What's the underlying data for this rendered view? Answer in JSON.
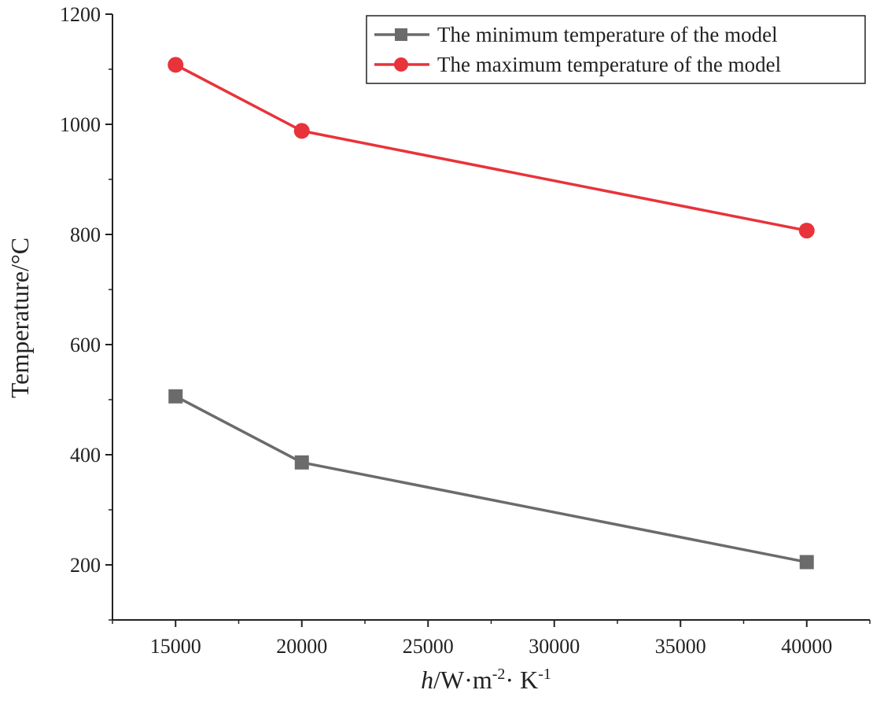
{
  "chart_data": {
    "type": "line",
    "title": "",
    "x": [
      15000,
      20000,
      40000
    ],
    "series": [
      {
        "name": "The minimum temperature of the model",
        "values": [
          506,
          386,
          205
        ],
        "color": "#6b6b6b",
        "marker": "square"
      },
      {
        "name": "The maximum temperature of the model",
        "values": [
          1108,
          988,
          807
        ],
        "color": "#e8333a",
        "marker": "circle"
      }
    ],
    "xlim": [
      12500,
      42500
    ],
    "ylim": [
      100,
      1200
    ],
    "xticks": [
      15000,
      20000,
      25000,
      30000,
      35000,
      40000
    ],
    "yticks": [
      200,
      400,
      600,
      800,
      1000,
      1200
    ],
    "xtick_labels": [
      "15000",
      "20000",
      "25000",
      "30000",
      "35000",
      "40000"
    ],
    "ytick_labels": [
      "200",
      "400",
      "600",
      "800",
      "1000",
      "1200"
    ],
    "ylabel": "Temperature/°C",
    "xlabel": {
      "italic": "h",
      "unit": "/W·m",
      "exp1": "-2",
      "mid": "· K",
      "exp2": "-1"
    },
    "legend_position": "top-right",
    "grid": false
  }
}
